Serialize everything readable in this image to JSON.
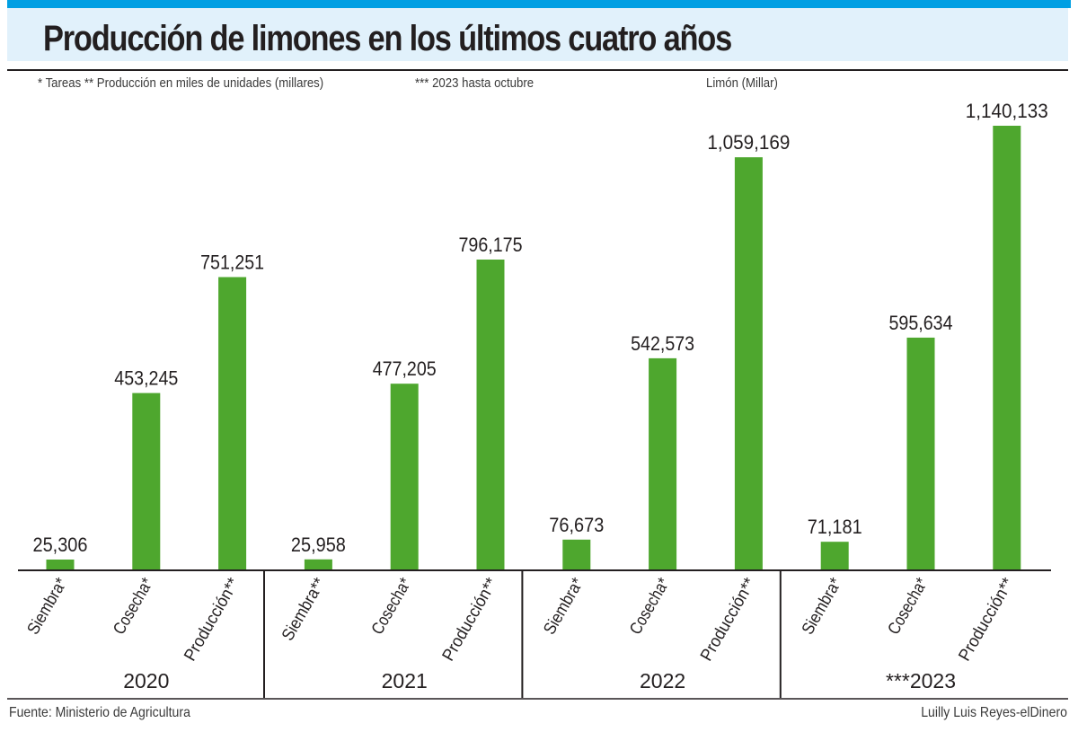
{
  "header": {
    "title": "Producción de limones en los últimos cuatro años",
    "notes": [
      "* Tareas  ** Producción en miles de unidades (millares)",
      "*** 2023 hasta octubre",
      "Limón (Millar)"
    ]
  },
  "footer": {
    "source": "Fuente: Ministerio de Agricultura",
    "credit": "Luilly Luis Reyes-elDinero"
  },
  "colors": {
    "bar": "#4ea72e",
    "accent_bar": "#009fe3",
    "title_bg": "#e1f1fb",
    "text": "#231f20"
  },
  "chart_data": {
    "type": "bar",
    "title": "Producción de limones en los últimos cuatro años",
    "subtitle": "Limón (Millar)",
    "xlabel": "",
    "ylabel": "",
    "grid": false,
    "legend": "none",
    "ylim": [
      0,
      1200000
    ],
    "groups": [
      {
        "label": "2020",
        "bars": [
          {
            "label": "Siembra*",
            "value": 25306,
            "value_label": "25,306"
          },
          {
            "label": "Cosecha*",
            "value": 453245,
            "value_label": "453,245"
          },
          {
            "label": "Producción**",
            "value": 751251,
            "value_label": "751,251"
          }
        ]
      },
      {
        "label": "2021",
        "bars": [
          {
            "label": "Siembra**",
            "value": 25958,
            "value_label": "25,958"
          },
          {
            "label": "Cosecha*",
            "value": 477205,
            "value_label": "477,205"
          },
          {
            "label": "Producción**",
            "value": 796175,
            "value_label": "796,175"
          }
        ]
      },
      {
        "label": "2022",
        "bars": [
          {
            "label": "Siembra*",
            "value": 76673,
            "value_label": "76,673"
          },
          {
            "label": "Cosecha*",
            "value": 542573,
            "value_label": "542,573"
          },
          {
            "label": "Producción**",
            "value": 1059169,
            "value_label": "1,059,169"
          }
        ]
      },
      {
        "label": "***2023",
        "bars": [
          {
            "label": "Siembra*",
            "value": 71181,
            "value_label": "71,181"
          },
          {
            "label": "Cosecha*",
            "value": 595634,
            "value_label": "595,634"
          },
          {
            "label": "Producción**",
            "value": 1140133,
            "value_label": "1,140,133"
          }
        ]
      }
    ]
  }
}
